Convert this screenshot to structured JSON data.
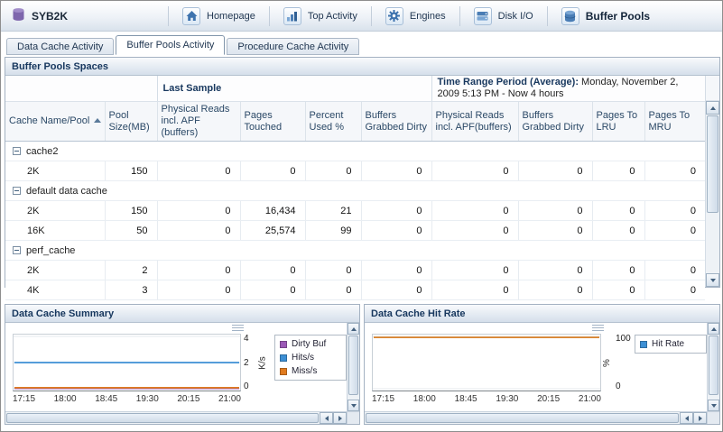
{
  "header": {
    "app_title": "SYB2K",
    "nav": [
      {
        "label": "Homepage"
      },
      {
        "label": "Top Activity"
      },
      {
        "label": "Engines"
      },
      {
        "label": "Disk I/O"
      },
      {
        "label": "Buffer Pools"
      }
    ]
  },
  "tabs": [
    {
      "label": "Data Cache Activity"
    },
    {
      "label": "Buffer Pools Activity"
    },
    {
      "label": "Procedure Cache Activity"
    }
  ],
  "buffer_pools_panel": {
    "title": "Buffer Pools Spaces",
    "last_sample_header": "Last Sample",
    "time_range_label": "Time Range Period (Average):",
    "time_range_value": " Monday, November 2, 2009  5:13 PM - Now  4 hours",
    "columns": [
      "Cache Name/Pool",
      "Pool Size(MB)",
      "Physical Reads incl. APF (buffers)",
      "Pages Touched",
      "Percent Used %",
      "Buffers Grabbed Dirty",
      "Physical Reads incl. APF(buffers)",
      "Buffers Grabbed Dirty",
      "Pages To LRU",
      "Pages To MRU"
    ],
    "groups": [
      "cache2",
      "default data cache",
      "perf_cache"
    ],
    "rows": [
      {
        "pool": "2K",
        "values": [
          "150",
          "0",
          "0",
          "0",
          "0",
          "0",
          "0",
          "0",
          "0"
        ]
      },
      {
        "pool": "2K",
        "values": [
          "150",
          "0",
          "16,434",
          "21",
          "0",
          "0",
          "0",
          "0",
          "0"
        ]
      },
      {
        "pool": "16K",
        "values": [
          "50",
          "0",
          "25,574",
          "99",
          "0",
          "0",
          "0",
          "0",
          "0"
        ]
      },
      {
        "pool": "2K",
        "values": [
          "2",
          "0",
          "0",
          "0",
          "0",
          "0",
          "0",
          "0",
          "0"
        ]
      },
      {
        "pool": "4K",
        "values": [
          "3",
          "0",
          "0",
          "0",
          "0",
          "0",
          "0",
          "0",
          "0"
        ]
      }
    ]
  },
  "chart_data": [
    {
      "type": "line",
      "title": "Data Cache Summary",
      "ylabel": "K/s",
      "ylim": [
        0,
        4
      ],
      "y_ticks": [
        4,
        2,
        0
      ],
      "x_ticks": [
        "17:15",
        "18:00",
        "18:45",
        "19:30",
        "20:15",
        "21:00"
      ],
      "legend_position": "right",
      "grid": true,
      "series": [
        {
          "name": "Dirty Buf",
          "legend_color": "#9b59b6",
          "line_color": "#9b59b6",
          "values": [
            0.03,
            0.03,
            0.03,
            0.03,
            0.03,
            0.03,
            0.03
          ]
        },
        {
          "name": "Hits/s",
          "legend_color": "#3d8fd4",
          "line_color": "#3d8fd4",
          "values": [
            2,
            2,
            2,
            2,
            2,
            2,
            2
          ]
        },
        {
          "name": "Miss/s",
          "legend_color": "#e07b1f",
          "line_color": "#e07b1f",
          "values": [
            0.08,
            0.08,
            0.08,
            0.08,
            0.08,
            0.08,
            0.08
          ]
        }
      ]
    },
    {
      "type": "line",
      "title": "Data Cache Hit Rate",
      "ylabel": "%",
      "ylim": [
        0,
        100
      ],
      "y_ticks": [
        100,
        0
      ],
      "x_ticks": [
        "17:15",
        "18:00",
        "18:45",
        "19:30",
        "20:15",
        "21:00"
      ],
      "legend_position": "right",
      "grid": true,
      "series": [
        {
          "name": "Hit Rate",
          "legend_color": "#3d8fd4",
          "line_color": "#d9822b",
          "values": [
            98,
            98,
            98,
            98,
            98,
            98,
            98
          ]
        }
      ]
    }
  ]
}
